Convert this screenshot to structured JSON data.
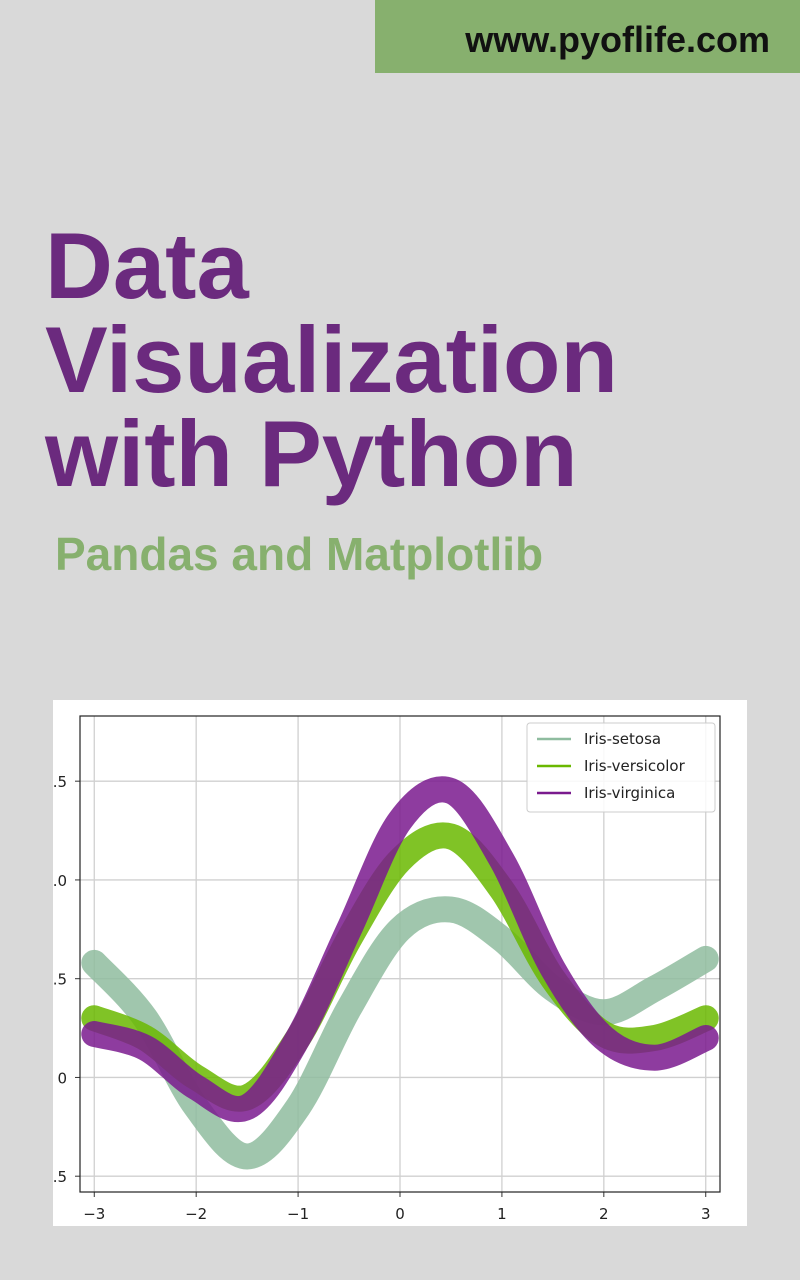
{
  "header": {
    "url": "www.pyoflife.com"
  },
  "title_lines": [
    "Data",
    "Visualization",
    "with Python"
  ],
  "subtitle": "Pandas and Matplotlib",
  "chart_data": {
    "type": "line",
    "x": [
      -3,
      -2.5,
      -2,
      -1.5,
      -1,
      -0.5,
      0,
      0.5,
      1,
      1.5,
      2,
      2.5,
      3
    ],
    "series": [
      {
        "name": "Iris-setosa",
        "color": "#8fbc9f",
        "values": [
          0.58,
          0.3,
          -0.15,
          -0.4,
          -0.15,
          0.35,
          0.75,
          0.85,
          0.7,
          0.45,
          0.33,
          0.45,
          0.6
        ]
      },
      {
        "name": "Iris-versicolor",
        "color": "#6ab800",
        "values": [
          0.3,
          0.2,
          0.0,
          -0.1,
          0.2,
          0.7,
          1.1,
          1.22,
          0.95,
          0.5,
          0.22,
          0.2,
          0.3
        ]
      },
      {
        "name": "Iris-virginica",
        "color": "#7a1a8e",
        "values": [
          0.22,
          0.15,
          -0.05,
          -0.15,
          0.2,
          0.75,
          1.3,
          1.45,
          1.1,
          0.55,
          0.2,
          0.1,
          0.2
        ]
      }
    ],
    "xlim": [
      -3.14,
      3.14
    ],
    "ylim": [
      -0.58,
      1.83
    ],
    "xticks": [
      {
        "value": -3,
        "label": "−3"
      },
      {
        "value": -2,
        "label": "−2"
      },
      {
        "value": -1,
        "label": "−1"
      },
      0,
      1,
      2,
      3
    ],
    "yticks": [
      {
        "value": -0.5,
        "label": ".5"
      },
      0,
      {
        "value": 0.5,
        "label": ".5"
      },
      {
        "value": 1.0,
        "label": ".0"
      },
      {
        "value": 1.5,
        "label": ".5"
      }
    ],
    "grid": true,
    "legend": "upper right"
  }
}
